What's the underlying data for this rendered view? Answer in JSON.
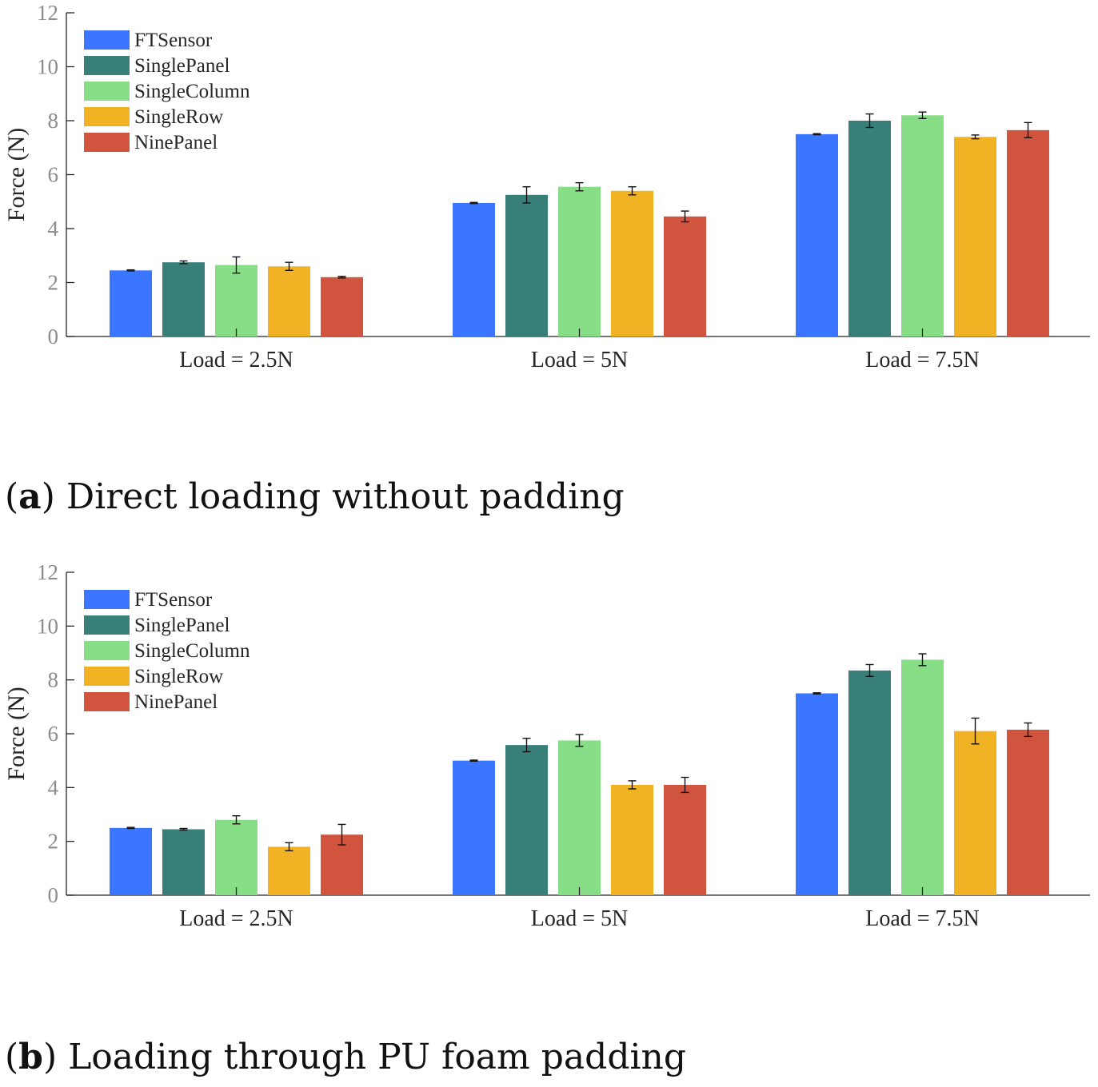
{
  "chart_data": [
    {
      "type": "bar",
      "caption_label": "a",
      "caption_text": "Direct loading without padding",
      "ylabel": "Force (N)",
      "xlabel": "",
      "ylim": [
        0,
        12
      ],
      "yticks": [
        0,
        2,
        4,
        6,
        8,
        10,
        12
      ],
      "categories": [
        "Load = 2.5N",
        "Load = 5N",
        "Load = 7.5N"
      ],
      "legend_position": "top-left",
      "series": [
        {
          "name": "FTSensor",
          "color": "#3a76ff",
          "values": [
            2.45,
            4.95,
            7.5
          ],
          "errors": [
            0.02,
            0.02,
            0.02
          ]
        },
        {
          "name": "SinglePanel",
          "color": "#387e79",
          "values": [
            2.75,
            5.25,
            8.0
          ],
          "errors": [
            0.05,
            0.3,
            0.25
          ]
        },
        {
          "name": "SingleColumn",
          "color": "#88de86",
          "values": [
            2.65,
            5.55,
            8.2
          ],
          "errors": [
            0.3,
            0.15,
            0.12
          ]
        },
        {
          "name": "SingleRow",
          "color": "#f1b324",
          "values": [
            2.6,
            5.4,
            7.4
          ],
          "errors": [
            0.15,
            0.15,
            0.07
          ]
        },
        {
          "name": "NinePanel",
          "color": "#d0543e",
          "values": [
            2.2,
            4.45,
            7.65
          ],
          "errors": [
            0.03,
            0.2,
            0.28
          ]
        }
      ]
    },
    {
      "type": "bar",
      "caption_label": "b",
      "caption_text": "Loading through PU foam padding",
      "ylabel": "Force (N)",
      "xlabel": "",
      "ylim": [
        0,
        12
      ],
      "yticks": [
        0,
        2,
        4,
        6,
        8,
        10,
        12
      ],
      "categories": [
        "Load = 2.5N",
        "Load = 5N",
        "Load = 7.5N"
      ],
      "legend_position": "top-left",
      "series": [
        {
          "name": "FTSensor",
          "color": "#3a76ff",
          "values": [
            2.5,
            5.0,
            7.5
          ],
          "errors": [
            0.02,
            0.02,
            0.02
          ]
        },
        {
          "name": "SinglePanel",
          "color": "#387e79",
          "values": [
            2.45,
            5.58,
            8.35
          ],
          "errors": [
            0.03,
            0.25,
            0.22
          ]
        },
        {
          "name": "SingleColumn",
          "color": "#88de86",
          "values": [
            2.8,
            5.75,
            8.75
          ],
          "errors": [
            0.15,
            0.22,
            0.22
          ]
        },
        {
          "name": "SingleRow",
          "color": "#f1b324",
          "values": [
            1.8,
            4.1,
            6.1
          ],
          "errors": [
            0.15,
            0.15,
            0.48
          ]
        },
        {
          "name": "NinePanel",
          "color": "#d0543e",
          "values": [
            2.25,
            4.1,
            6.15
          ],
          "errors": [
            0.38,
            0.28,
            0.25
          ]
        }
      ]
    }
  ]
}
